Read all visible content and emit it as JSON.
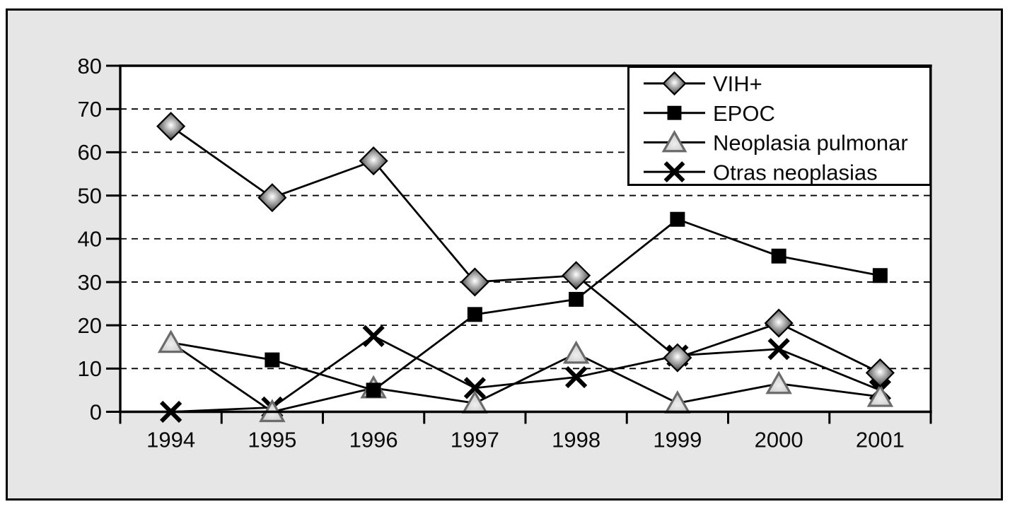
{
  "figure": {
    "kind": "statistical line chart",
    "background_note": "gray figure panel with black frame, white plot area"
  },
  "chart_data": {
    "type": "line",
    "title": "",
    "xlabel": "",
    "ylabel": "",
    "x": [
      "1994",
      "1995",
      "1996",
      "1997",
      "1998",
      "1999",
      "2000",
      "2001"
    ],
    "yticks": [
      "0",
      "10",
      "20",
      "30",
      "40",
      "50",
      "60",
      "70",
      "80"
    ],
    "ylim": [
      0,
      80
    ],
    "grid": "horizontal-dashed",
    "legend_position": "top-right",
    "series": [
      {
        "name": "VIH+",
        "marker": "diamond",
        "values": [
          66,
          49.5,
          58,
          30,
          31.5,
          12.5,
          20.5,
          9
        ]
      },
      {
        "name": "EPOC",
        "marker": "square",
        "values": [
          16,
          12,
          5,
          22.5,
          26,
          44.5,
          36,
          31.5
        ],
        "hidden_marker_indexes": [
          0
        ],
        "note": "1994 marker not visible (hidden behind Neoplasia pulmonar triangle)"
      },
      {
        "name": "Neoplasia pulmonar",
        "marker": "triangle",
        "values": [
          16,
          0,
          5.5,
          2,
          13.5,
          2,
          6.5,
          3.5
        ]
      },
      {
        "name": "Otras neoplasias",
        "marker": "x",
        "values": [
          0,
          1,
          17.5,
          5.5,
          8,
          13,
          14.5,
          5
        ]
      }
    ],
    "marker_z_order_bottom_to_top": [
      "x",
      "triangle",
      "square",
      "diamond"
    ],
    "colors": {
      "panel_background": "#e6e6e6",
      "plot_background": "#ffffff",
      "line": "#000000",
      "frame": "#000000",
      "square_fill": "#000000",
      "triangle_fill": "#d6d6d6",
      "triangle_stroke": "#6b6b6b",
      "diamond_edge": "#1c1c1c",
      "diamond_center": "#ffffff",
      "text": "#0a0a0a"
    }
  }
}
